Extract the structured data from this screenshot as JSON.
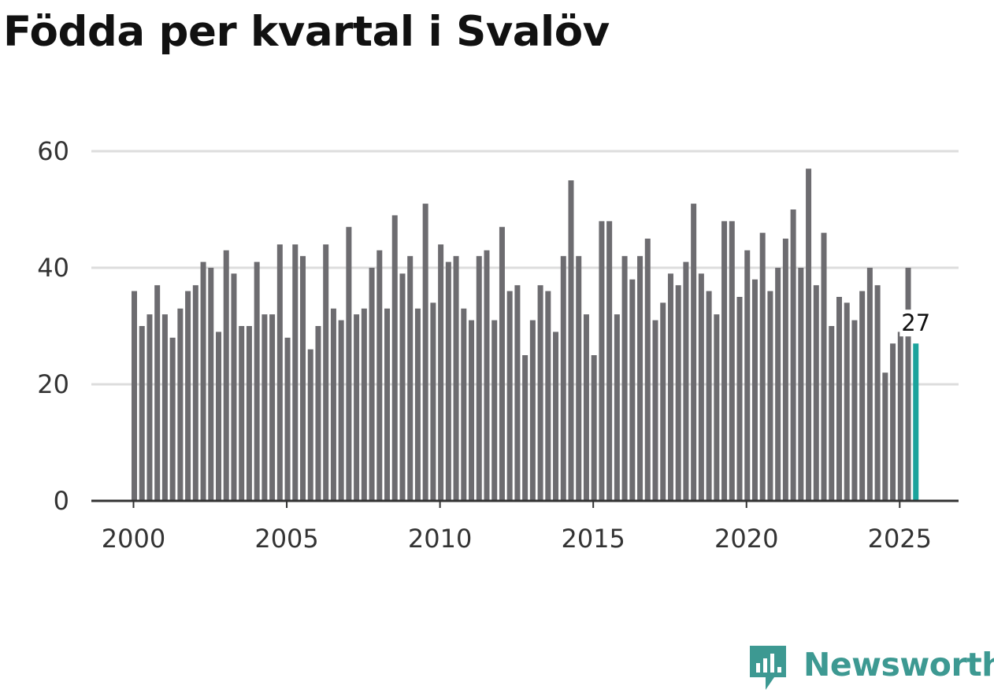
{
  "chart_data": {
    "type": "bar",
    "title": "Födda per kvartal i Svalöv",
    "xlabel": "",
    "ylabel": "",
    "x_start": 2000,
    "periods_per_year": 4,
    "ylim": [
      0,
      60
    ],
    "yticks": [
      "0",
      "20",
      "40",
      "60"
    ],
    "xticks": [
      "2000",
      "2005",
      "2010",
      "2015",
      "2020",
      "2025"
    ],
    "grid": true,
    "values": [
      36,
      30,
      32,
      37,
      32,
      28,
      33,
      36,
      37,
      41,
      40,
      29,
      43,
      39,
      30,
      30,
      41,
      32,
      32,
      44,
      28,
      44,
      42,
      26,
      30,
      44,
      33,
      31,
      47,
      32,
      33,
      40,
      43,
      33,
      49,
      39,
      42,
      33,
      51,
      34,
      44,
      41,
      42,
      33,
      31,
      42,
      43,
      31,
      47,
      36,
      37,
      25,
      31,
      37,
      36,
      29,
      42,
      55,
      42,
      32,
      25,
      48,
      48,
      32,
      42,
      38,
      42,
      45,
      31,
      34,
      39,
      37,
      41,
      51,
      39,
      36,
      32,
      48,
      48,
      35,
      43,
      38,
      46,
      36,
      40,
      45,
      50,
      40,
      57,
      37,
      46,
      30,
      35,
      34,
      31,
      36,
      40,
      37,
      22,
      27,
      29,
      40,
      27
    ],
    "highlight_label": "27",
    "colors": {
      "bar": "#6d6c70",
      "highlight": "#1ba39c",
      "grid": "#dddddd",
      "axis": "#333333",
      "tick_text": "#333333",
      "title": "#111111"
    }
  },
  "brand": {
    "name": "Newsworthy",
    "color": "#3d9992"
  }
}
